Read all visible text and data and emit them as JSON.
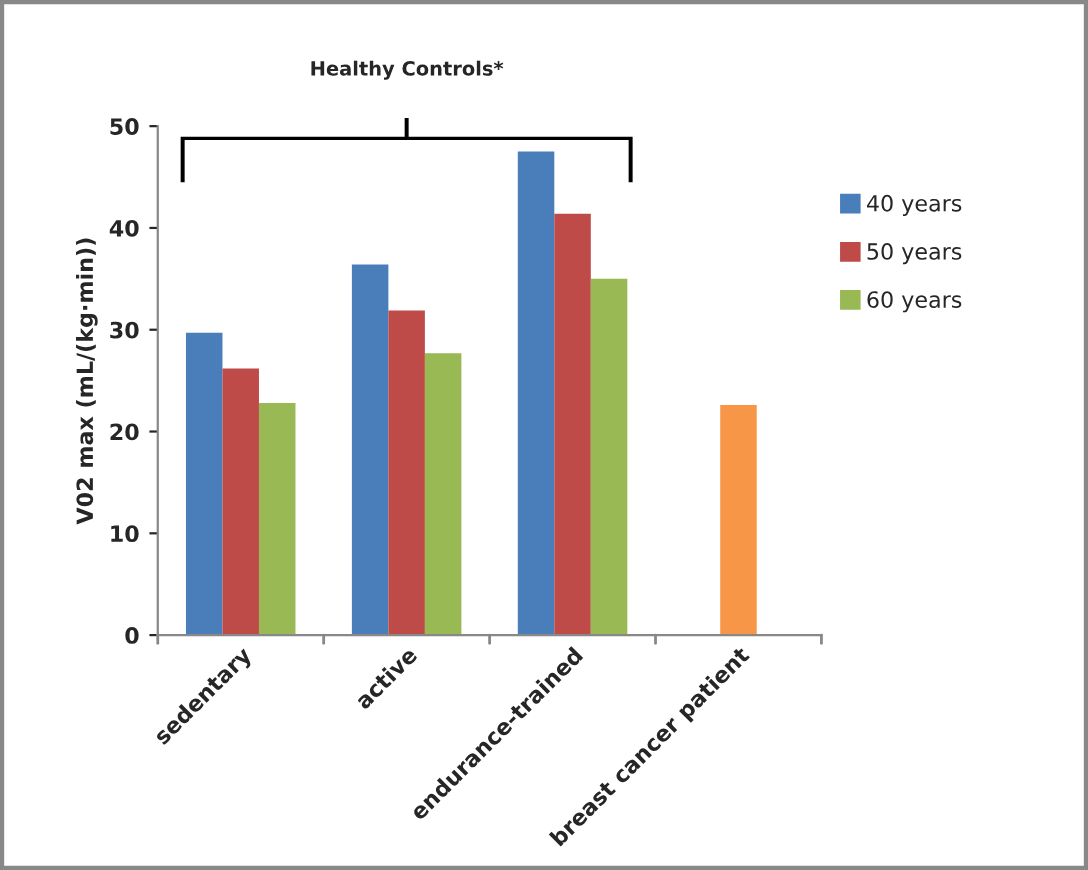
{
  "chart_data": {
    "type": "bar",
    "ylabel": "V02 max (mL/(kg·min))",
    "categories": [
      "sedentary",
      "active",
      "endurance-trained",
      "breast cancer patient"
    ],
    "series": [
      {
        "name": "40 years",
        "color": "#4a7ebb",
        "values": [
          29.7,
          36.4,
          47.5,
          null
        ]
      },
      {
        "name": "50 years",
        "color": "#be4b48",
        "values": [
          26.2,
          31.9,
          41.4,
          null
        ]
      },
      {
        "name": "60 years",
        "color": "#98b954",
        "values": [
          22.8,
          27.7,
          35.0,
          null
        ]
      },
      {
        "color": "#f79646",
        "values": [
          null,
          null,
          null,
          22.6
        ]
      }
    ],
    "ylim": [
      0,
      50
    ],
    "yticks": [
      0,
      10,
      20,
      30,
      40,
      50
    ],
    "annotations": [
      "Healthy Controls*"
    ],
    "grid": false,
    "legend": "right"
  }
}
